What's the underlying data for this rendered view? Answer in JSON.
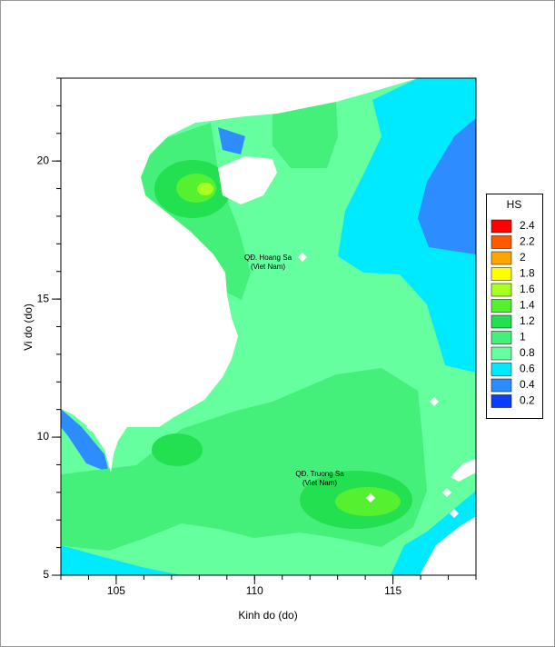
{
  "map": {
    "xlabel": "Kinh do (do)",
    "ylabel": "Vi do (do)",
    "xlim": [
      103,
      118
    ],
    "ylim": [
      5,
      23
    ],
    "xticks": [
      105,
      110,
      115
    ],
    "yticks": [
      5,
      10,
      15,
      20
    ],
    "annotations": [
      {
        "lines": [
          "QĐ. Hoang Sa",
          "(Viet Nam)"
        ]
      },
      {
        "lines": [
          "QĐ. Truong Sa",
          "(Viet Nam)"
        ]
      }
    ]
  },
  "legend": {
    "title": "HS",
    "levels": [
      2.4,
      2.2,
      2,
      1.8,
      1.6,
      1.4,
      1.2,
      1,
      0.8,
      0.6,
      0.4,
      0.2
    ],
    "colors": [
      "#ff0000",
      "#ff5a00",
      "#ffa500",
      "#ffff00",
      "#a8ff20",
      "#55f030",
      "#22e050",
      "#44f07a",
      "#66ffa0",
      "#00eaff",
      "#2d8cff",
      "#0a3cff"
    ]
  }
}
